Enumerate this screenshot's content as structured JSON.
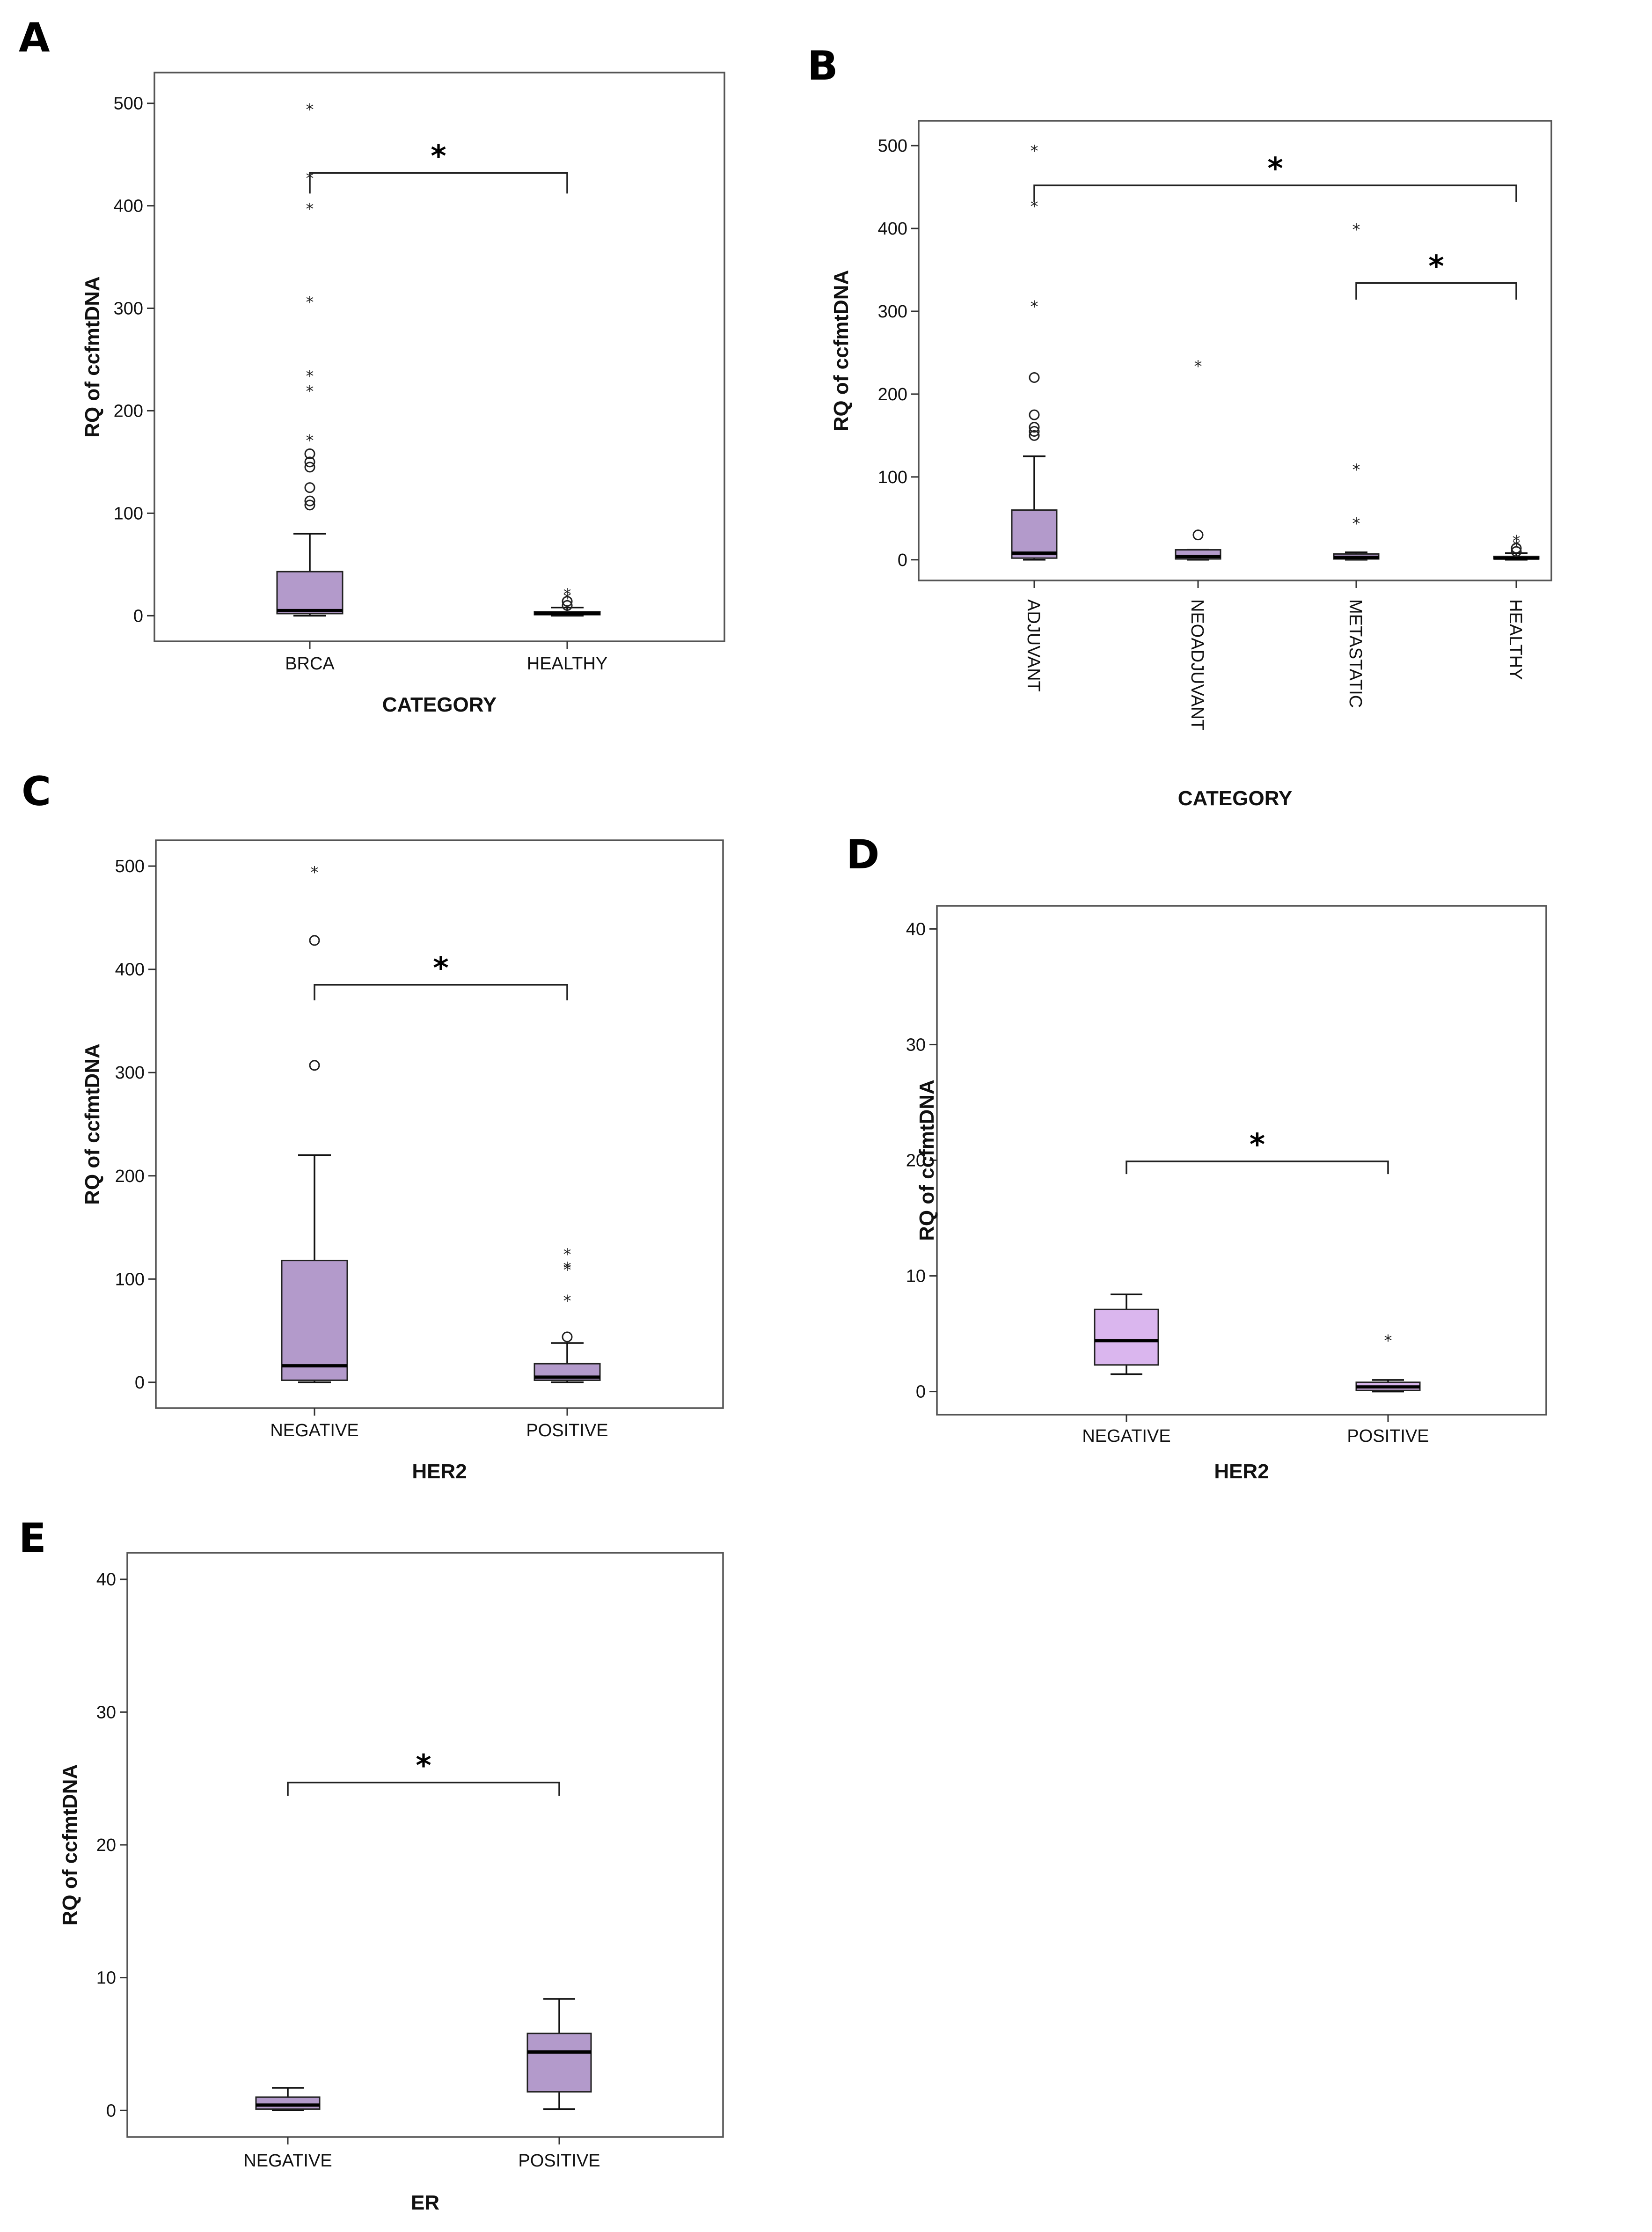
{
  "chart_data": [
    {
      "panel": "A",
      "type": "boxplot",
      "ylabel": "RQ of ccfmtDNA",
      "xlabel": "CATEGORY",
      "ylim": [
        -25,
        530
      ],
      "yticks": [
        0,
        100,
        200,
        300,
        400,
        500
      ],
      "categories": [
        "BRCA",
        "HEALTHY"
      ],
      "boxes": [
        {
          "category": "BRCA",
          "whisker_low": 0,
          "q1": 2,
          "median": 5,
          "q3": 43,
          "whisker_high": 80,
          "outliers_circle": [
            108,
            112,
            125,
            145,
            150,
            158
          ],
          "outliers_star": [
            172,
            220,
            235,
            307,
            398,
            428,
            495
          ],
          "fill": "#b39acb"
        },
        {
          "category": "HEALTHY",
          "whisker_low": 0,
          "q1": 1,
          "median": 2,
          "q3": 4,
          "whisker_high": 8,
          "outliers_circle": [
            10,
            14
          ],
          "outliers_star": [
            18,
            22
          ],
          "fill": "#b39acb"
        }
      ],
      "significance": [
        {
          "from": "BRCA",
          "to": "HEALTHY",
          "y": 432,
          "drop": 20,
          "label": "*"
        }
      ]
    },
    {
      "panel": "B",
      "type": "boxplot",
      "ylabel": "RQ of ccfmtDNA",
      "xlabel": "CATEGORY",
      "ylim": [
        -25,
        530
      ],
      "yticks": [
        0,
        100,
        200,
        300,
        400,
        500
      ],
      "categories": [
        "ADJUVANT",
        "NEOADJUVANT",
        "METASTATIC",
        "HEALTHY"
      ],
      "rotate_x": true,
      "boxes": [
        {
          "category": "ADJUVANT",
          "whisker_low": 0,
          "q1": 2,
          "median": 8,
          "q3": 60,
          "whisker_high": 125,
          "outliers_circle": [
            150,
            155,
            160,
            175,
            220
          ],
          "outliers_star": [
            307,
            428,
            495
          ],
          "fill": "#b39acb"
        },
        {
          "category": "NEOADJUVANT",
          "whisker_low": 0,
          "q1": 1,
          "median": 4,
          "q3": 12,
          "whisker_high": 12,
          "outliers_circle": [
            30
          ],
          "outliers_star": [
            235
          ],
          "fill": "#b39acb"
        },
        {
          "category": "METASTATIC",
          "whisker_low": 0,
          "q1": 1,
          "median": 3,
          "q3": 7,
          "whisker_high": 9,
          "outliers_circle": [],
          "outliers_star": [
            45,
            110,
            400
          ],
          "fill": "#b39acb"
        },
        {
          "category": "HEALTHY",
          "whisker_low": 0,
          "q1": 1,
          "median": 2,
          "q3": 4,
          "whisker_high": 8,
          "outliers_circle": [
            10,
            14
          ],
          "outliers_star": [
            18,
            24
          ],
          "fill": "#b39acb"
        }
      ],
      "significance": [
        {
          "from": "ADJUVANT",
          "to": "HEALTHY",
          "y": 452,
          "drop": 20,
          "label": "*"
        },
        {
          "from": "METASTATIC",
          "to": "HEALTHY",
          "y": 334,
          "drop": 20,
          "label": "*"
        }
      ]
    },
    {
      "panel": "C",
      "type": "boxplot",
      "ylabel": "RQ of ccfmtDNA",
      "xlabel": "HER2",
      "ylim": [
        -25,
        525
      ],
      "yticks": [
        0,
        100,
        200,
        300,
        400,
        500
      ],
      "categories": [
        "NEGATIVE",
        "POSITIVE"
      ],
      "boxes": [
        {
          "category": "NEGATIVE",
          "whisker_low": 0,
          "q1": 2,
          "median": 16,
          "q3": 118,
          "whisker_high": 220,
          "outliers_circle": [
            307,
            428
          ],
          "outliers_star": [
            495
          ],
          "fill": "#b39acb"
        },
        {
          "category": "POSITIVE",
          "whisker_low": 0,
          "q1": 2,
          "median": 5,
          "q3": 18,
          "whisker_high": 38,
          "outliers_circle": [
            44
          ],
          "outliers_star": [
            80,
            110,
            112,
            125
          ],
          "fill": "#b39acb"
        }
      ],
      "significance": [
        {
          "from": "NEGATIVE",
          "to": "POSITIVE",
          "y": 385,
          "drop": 15,
          "label": "*"
        }
      ]
    },
    {
      "panel": "D",
      "type": "boxplot",
      "ylabel": "RQ of ccfmtDNA",
      "xlabel": "HER2",
      "ylim": [
        -2,
        42
      ],
      "yticks": [
        0,
        10,
        20,
        30,
        40
      ],
      "categories": [
        "NEGATIVE",
        "POSITIVE"
      ],
      "boxes": [
        {
          "category": "NEGATIVE",
          "whisker_low": 1.5,
          "q1": 2.3,
          "median": 4.4,
          "q3": 7.1,
          "whisker_high": 8.4,
          "outliers_circle": [],
          "outliers_star": [],
          "fill": "#dab6ee"
        },
        {
          "category": "POSITIVE",
          "whisker_low": 0,
          "q1": 0.1,
          "median": 0.4,
          "q3": 0.8,
          "whisker_high": 1.0,
          "outliers_circle": [],
          "outliers_star": [
            4.5
          ],
          "fill": "#dab6ee"
        }
      ],
      "significance": [
        {
          "from": "NEGATIVE",
          "to": "POSITIVE",
          "y": 19.9,
          "drop": 1.1,
          "label": "*"
        }
      ]
    },
    {
      "panel": "E",
      "type": "boxplot",
      "ylabel": "RQ of ccfmtDNA",
      "xlabel": "ER",
      "ylim": [
        -2,
        42
      ],
      "yticks": [
        0,
        10,
        20,
        30,
        40
      ],
      "categories": [
        "NEGATIVE",
        "POSITIVE"
      ],
      "boxes": [
        {
          "category": "NEGATIVE",
          "whisker_low": 0,
          "q1": 0.1,
          "median": 0.4,
          "q3": 1.0,
          "whisker_high": 1.7,
          "outliers_circle": [],
          "outliers_star": [],
          "fill": "#b39acb"
        },
        {
          "category": "POSITIVE",
          "whisker_low": 0.1,
          "q1": 1.4,
          "median": 4.4,
          "q3": 5.8,
          "whisker_high": 8.4,
          "outliers_circle": [],
          "outliers_star": [],
          "fill": "#b39acb"
        }
      ],
      "significance": [
        {
          "from": "NEGATIVE",
          "to": "POSITIVE",
          "y": 24.7,
          "drop": 1.0,
          "label": "*"
        }
      ]
    }
  ]
}
